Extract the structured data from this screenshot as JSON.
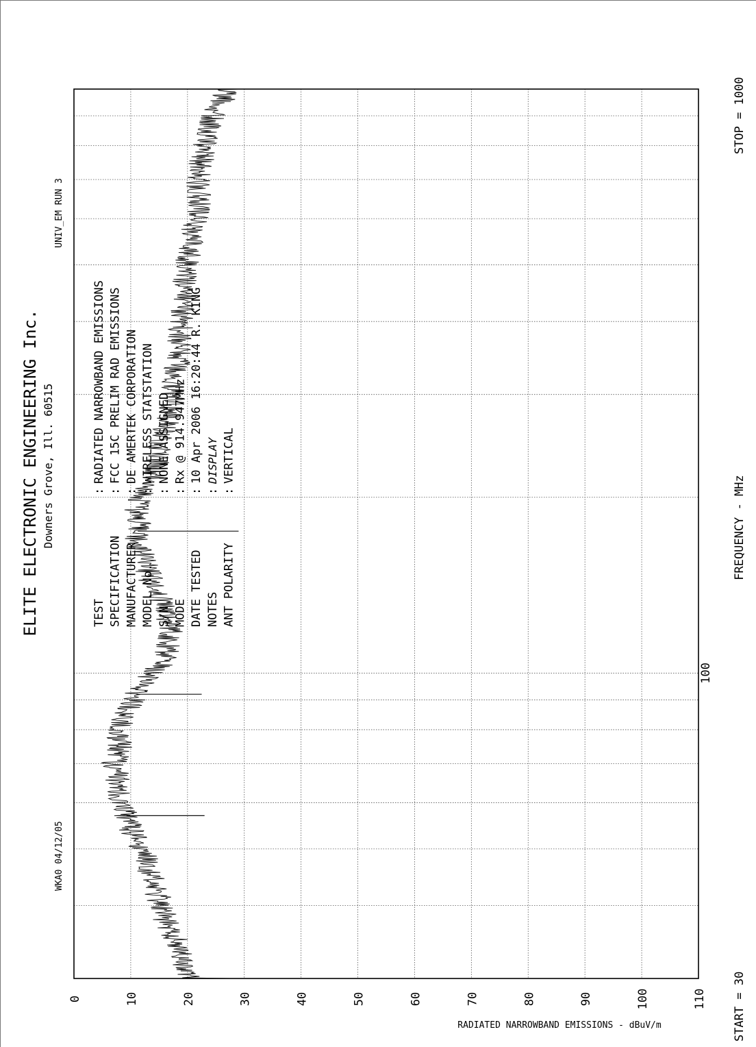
{
  "header": {
    "id_left": "WKA0  04/12/05",
    "id_right": "UNIV_EM   RUN 3",
    "title": "ELITE ELECTRONIC ENGINEERING Inc.",
    "subtitle": "Downers Grove, Ill. 60515"
  },
  "info": [
    {
      "label": "TEST",
      "sep": ":",
      "value": "RADIATED NARROWBAND EMISSIONS"
    },
    {
      "label": "SPECIFICATION",
      "sep": ":",
      "value": "FCC 15C PRELIM RAD EMISSIONS"
    },
    {
      "label": "MANUFACTURER",
      "sep": ":",
      "value": "DE AMERTEK CORPORATION"
    },
    {
      "label": "MODEL No.",
      "sep": ":",
      "value": "WIRELESS STATSTATION"
    },
    {
      "label": "S/N",
      "sep": ":",
      "value": "NONE ASSIGNED"
    },
    {
      "label": "MODE",
      "sep": ":",
      "value": "Rx @ 914.947MHz"
    },
    {
      "label": "DATE TESTED",
      "sep": ":",
      "value": "10 Apr 2006  16:20:44   R. KING"
    },
    {
      "label": "NOTES",
      "sep": ":",
      "value": "DISPLAY"
    },
    {
      "label": "ANT POLARITY",
      "sep": ":",
      "value": "VERTICAL"
    }
  ],
  "footer": {
    "start": "START = 30",
    "stop": "STOP = 1000"
  },
  "chart_data": {
    "type": "line",
    "xlabel": "FREQUENCY - MHz",
    "ylabel": "RADIATED NARROWBAND EMISSIONS - dBuV/m",
    "x_scale": "log",
    "xlim": [
      30,
      1000
    ],
    "ylim": [
      0,
      110
    ],
    "x_tick_labels": [
      "100"
    ],
    "y_ticks": [
      0,
      10,
      20,
      30,
      40,
      50,
      60,
      70,
      80,
      90,
      100,
      110
    ],
    "y_tick_labels": [
      "0",
      "10",
      "20",
      "30",
      "40",
      "50",
      "60",
      "70",
      "80",
      "90",
      "100",
      "110"
    ],
    "grid": true,
    "series": [
      {
        "x": [
          30,
          32,
          35,
          38,
          41,
          44,
          47,
          50,
          52,
          54,
          56,
          58,
          60,
          62,
          64,
          66,
          68,
          70,
          72,
          74,
          76,
          78,
          80,
          82,
          84,
          86,
          88,
          90,
          92,
          94,
          96,
          98,
          100,
          105,
          110,
          115,
          120,
          130,
          140,
          150,
          160,
          170,
          180,
          190,
          200,
          215,
          230,
          250,
          270,
          290,
          310,
          330,
          350,
          375,
          400,
          430,
          460,
          500,
          540,
          580,
          620,
          660,
          700,
          750,
          800,
          850,
          900,
          950,
          1000
        ],
        "y": [
          20,
          19,
          18,
          16,
          15,
          14,
          13,
          12,
          11,
          10,
          9.5,
          9,
          8,
          8,
          8,
          7.5,
          7.5,
          7,
          7.5,
          8,
          8,
          8,
          8,
          8.5,
          9,
          9.5,
          10,
          10.5,
          11,
          11.5,
          12,
          12.5,
          14,
          16,
          16.5,
          17,
          17,
          16,
          14,
          13,
          12,
          11,
          11.5,
          11,
          12,
          14,
          15,
          15.5,
          16.5,
          17.5,
          17.5,
          18,
          18.5,
          18.5,
          19,
          19.5,
          19.5,
          20,
          20.5,
          21,
          22,
          22,
          22,
          22.5,
          23,
          24,
          24.5,
          26,
          27
        ]
      }
    ],
    "peaks": [
      {
        "x": 57,
        "y": 23
      },
      {
        "x": 92,
        "y": 22.5
      },
      {
        "x": 175,
        "y": 29
      }
    ]
  }
}
